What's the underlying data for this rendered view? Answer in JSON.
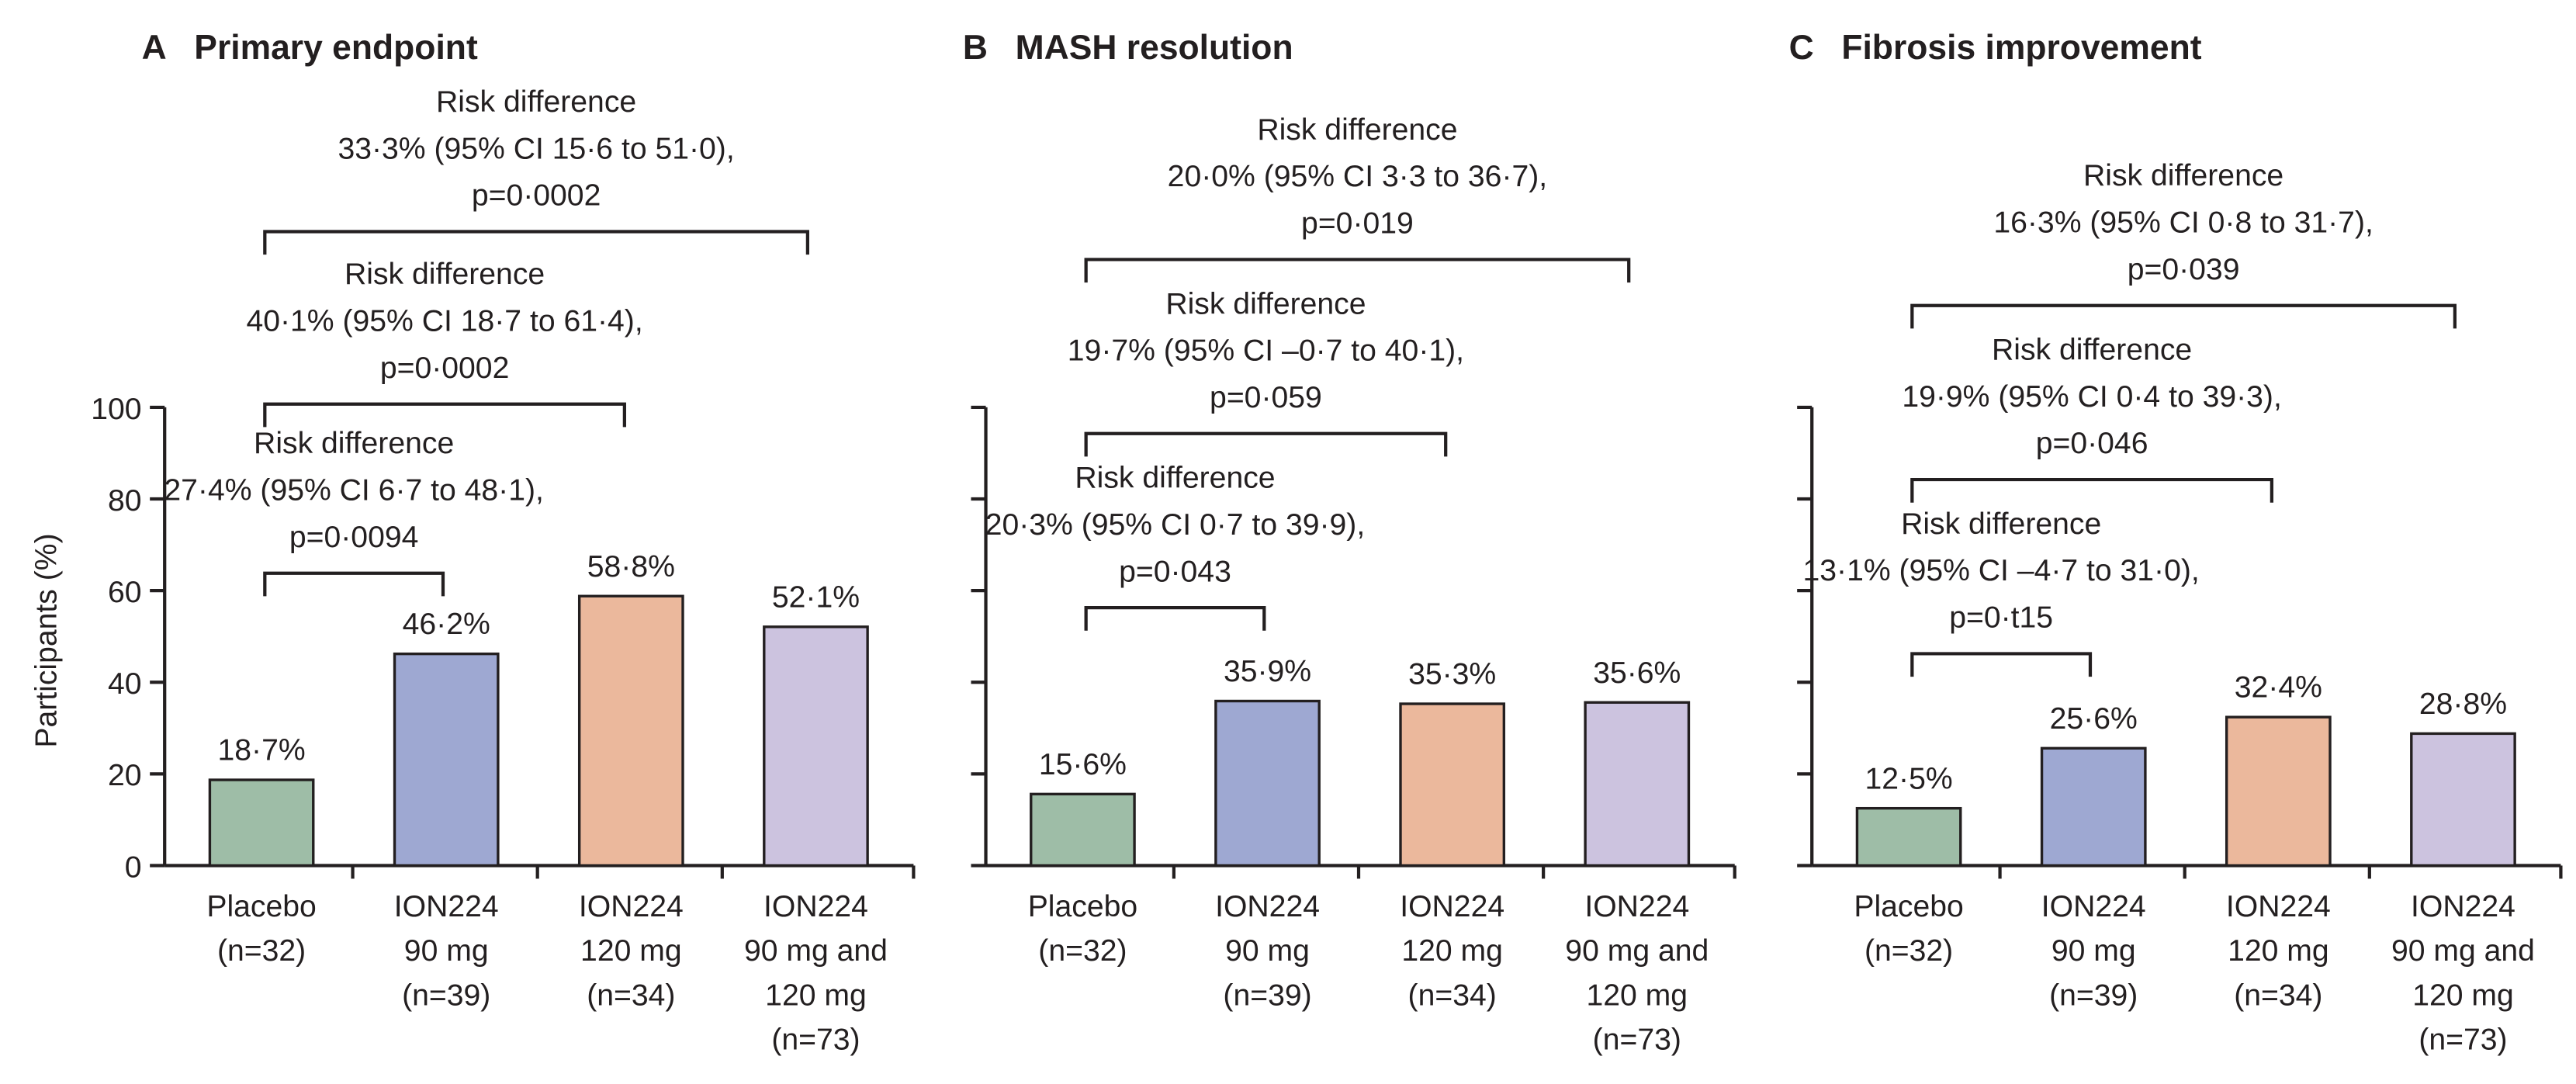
{
  "chart_data": [
    {
      "type": "bar",
      "panel": "A",
      "title": "Primary endpoint",
      "ylabel": "Participants (%)",
      "ylim": [
        0,
        100
      ],
      "yticks": [
        0,
        20,
        40,
        60,
        80,
        100
      ],
      "categories": [
        [
          "Placebo",
          "(n=32)"
        ],
        [
          "ION224",
          "90 mg",
          "(n=39)"
        ],
        [
          "ION224",
          "120 mg",
          "(n=34)"
        ],
        [
          "ION224",
          "90 mg and",
          "120 mg",
          "(n=73)"
        ]
      ],
      "values": [
        18.7,
        46.2,
        58.8,
        52.1
      ],
      "value_labels": [
        "18·7%",
        "46·2%",
        "58·8%",
        "52·1%"
      ],
      "comparisons": [
        {
          "from": 0,
          "to": 1,
          "lines": [
            "Risk difference",
            "27·4% (95% CI 6·7 to 48·1),",
            "p=0·0094"
          ]
        },
        {
          "from": 0,
          "to": 2,
          "lines": [
            "Risk difference",
            "40·1% (95% CI 18·7 to 61·4),",
            "p=0·0002"
          ]
        },
        {
          "from": 0,
          "to": 3,
          "lines": [
            "Risk difference",
            "33·3% (95% CI 15·6 to 51·0),",
            "p=0·0002"
          ]
        }
      ]
    },
    {
      "type": "bar",
      "panel": "B",
      "title": "MASH resolution",
      "ylim": [
        0,
        100
      ],
      "yticks": [
        0,
        20,
        40,
        60,
        80,
        100
      ],
      "categories": [
        [
          "Placebo",
          "(n=32)"
        ],
        [
          "ION224",
          "90 mg",
          "(n=39)"
        ],
        [
          "ION224",
          "120 mg",
          "(n=34)"
        ],
        [
          "ION224",
          "90 mg and",
          "120 mg",
          "(n=73)"
        ]
      ],
      "values": [
        15.6,
        35.9,
        35.3,
        35.6
      ],
      "value_labels": [
        "15·6%",
        "35·9%",
        "35·3%",
        "35·6%"
      ],
      "comparisons": [
        {
          "from": 0,
          "to": 1,
          "lines": [
            "Risk difference",
            "20·3% (95% CI 0·7 to 39·9),",
            "p=0·043"
          ]
        },
        {
          "from": 0,
          "to": 2,
          "lines": [
            "Risk difference",
            "19·7% (95% CI –0·7 to 40·1),",
            "p=0·059"
          ]
        },
        {
          "from": 0,
          "to": 3,
          "lines": [
            "Risk difference",
            "20·0% (95% CI 3·3 to 36·7),",
            "p=0·019"
          ]
        }
      ]
    },
    {
      "type": "bar",
      "panel": "C",
      "title": "Fibrosis improvement",
      "ylim": [
        0,
        100
      ],
      "yticks": [
        0,
        20,
        40,
        60,
        80,
        100
      ],
      "categories": [
        [
          "Placebo",
          "(n=32)"
        ],
        [
          "ION224",
          "90 mg",
          "(n=39)"
        ],
        [
          "ION224",
          "120 mg",
          "(n=34)"
        ],
        [
          "ION224",
          "90 mg and",
          "120 mg",
          "(n=73)"
        ]
      ],
      "values": [
        12.5,
        25.6,
        32.4,
        28.8
      ],
      "value_labels": [
        "12·5%",
        "25·6%",
        "32·4%",
        "28·8%"
      ],
      "comparisons": [
        {
          "from": 0,
          "to": 1,
          "lines": [
            "Risk difference",
            "13·1% (95% CI –4·7 to 31·0),",
            "p=0·t15"
          ]
        },
        {
          "from": 0,
          "to": 2,
          "lines": [
            "Risk difference",
            "19·9% (95% CI 0·4 to 39·3),",
            "p=0·046"
          ]
        },
        {
          "from": 0,
          "to": 3,
          "lines": [
            "Risk difference",
            "16·3% (95% CI 0·8 to 31·7),",
            "p=0·039"
          ]
        }
      ]
    }
  ],
  "colors": [
    "#9ebda7",
    "#9ea8d2",
    "#ebb89c",
    "#ccc3df"
  ]
}
